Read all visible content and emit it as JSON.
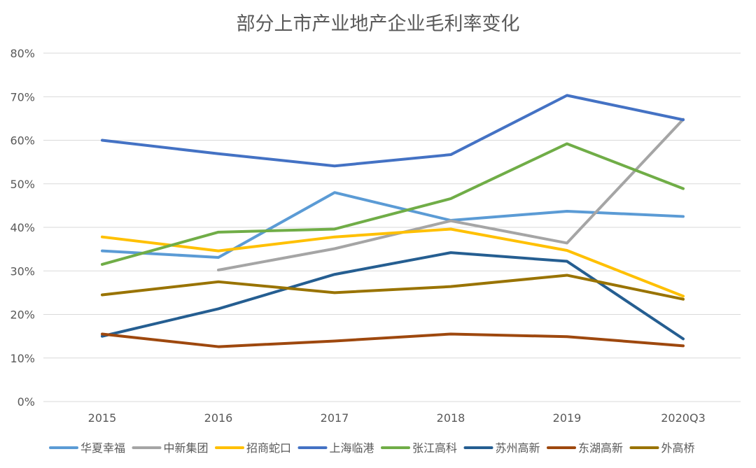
{
  "chart_data": {
    "type": "line",
    "title": "部分上市产业地产企业毛利率变化",
    "categories": [
      "2015",
      "2016",
      "2017",
      "2018",
      "2019",
      "2020Q3"
    ],
    "ylim": [
      0,
      80
    ],
    "yticks": [
      0,
      10,
      20,
      30,
      40,
      50,
      60,
      70,
      80
    ],
    "ytick_labels": [
      "0%",
      "10%",
      "20%",
      "30%",
      "40%",
      "50%",
      "60%",
      "70%",
      "80%"
    ],
    "grid": true,
    "legend_position": "bottom",
    "series": [
      {
        "name": "华夏幸福",
        "color": "#5b9bd5",
        "values": [
          34.6,
          33.1,
          48.0,
          41.6,
          43.7,
          42.5
        ]
      },
      {
        "name": "中新集团",
        "color": "#a5a5a5",
        "values": [
          null,
          30.2,
          35.1,
          41.5,
          36.4,
          64.8
        ]
      },
      {
        "name": "招商蛇口",
        "color": "#ffc000",
        "values": [
          37.8,
          34.6,
          37.8,
          39.6,
          34.7,
          24.2
        ]
      },
      {
        "name": "上海临港",
        "color": "#4472c4",
        "values": [
          60.0,
          56.9,
          54.1,
          56.7,
          70.3,
          64.7
        ]
      },
      {
        "name": "张江高科",
        "color": "#70ad47",
        "values": [
          31.5,
          38.9,
          39.6,
          46.6,
          59.2,
          48.9
        ]
      },
      {
        "name": "苏州高新",
        "color": "#255e91",
        "values": [
          15.0,
          21.3,
          29.2,
          34.2,
          32.2,
          14.4
        ]
      },
      {
        "name": "东湖高新",
        "color": "#9e480e",
        "values": [
          15.5,
          12.6,
          13.9,
          15.5,
          14.9,
          12.8
        ]
      },
      {
        "name": "外高桥",
        "color": "#997300",
        "values": [
          24.5,
          27.5,
          25.0,
          26.4,
          29.0,
          23.5
        ]
      }
    ]
  }
}
